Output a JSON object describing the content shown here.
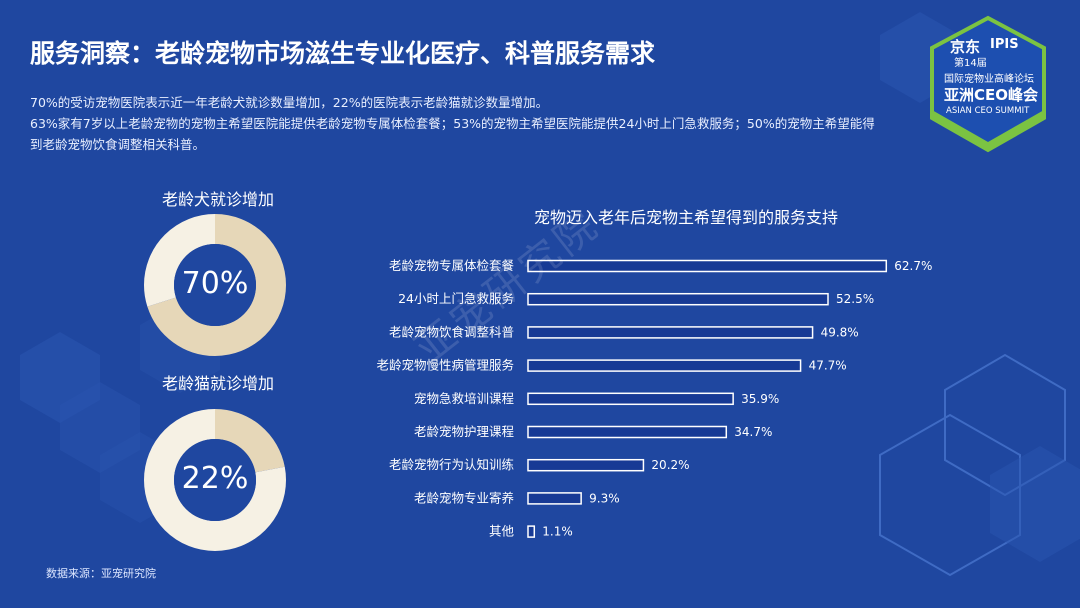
{
  "header": {
    "title": "服务洞察：老龄宠物市场滋生专业化医疗、科普服务需求"
  },
  "intro": {
    "line1": "70%的受访宠物医院表示近一年老龄犬就诊数量增加，22%的医院表示老龄猫就诊数量增加。",
    "line2": "63%家有7岁以上老龄宠物的宠物主希望医院能提供老龄宠物专属体检套餐；53%的宠物主希望医院能提供24小时上门急救服务；50%的宠物主希望能得",
    "line3": "到老龄宠物饮食调整相关科普。"
  },
  "badge": {
    "brand": "京东",
    "ipis": "IPIS",
    "edition": "第14届",
    "forum": "国际宠物业高峰论坛",
    "summit": "亚洲CEO峰会",
    "summit_en": "ASIAN CEO SUMMIT"
  },
  "watermark": "亚宠研究院",
  "source": "数据来源：亚宠研究院",
  "colors": {
    "background": "#1f47a0",
    "donut_fill": "#e6d7b8",
    "donut_rest": "#f6f1e4",
    "bar_fill": "#173a95",
    "bar_border": "#ffffff",
    "badge_green": "#7bc342",
    "badge_blue": "#1d4fb0"
  },
  "chart_data": [
    {
      "type": "pie",
      "title": "老龄犬就诊增加",
      "center_label": "70%",
      "values": [
        70,
        30
      ]
    },
    {
      "type": "pie",
      "title": "老龄猫就诊增加",
      "center_label": "22%",
      "values": [
        22,
        78
      ]
    },
    {
      "type": "bar",
      "orientation": "horizontal",
      "title": "宠物迈入老年后宠物主希望得到的服务支持",
      "categories": [
        "老龄宠物专属体检套餐",
        "24小时上门急救服务",
        "老龄宠物饮食调整科普",
        "老龄宠物慢性病管理服务",
        "宠物急救培训课程",
        "老龄宠物护理课程",
        "老龄宠物行为认知训练",
        "老龄宠物专业寄养",
        "其他"
      ],
      "values": [
        62.7,
        52.5,
        49.8,
        47.7,
        35.9,
        34.7,
        20.2,
        9.3,
        1.1
      ],
      "value_labels": [
        "62.7%",
        "52.5%",
        "49.8%",
        "47.7%",
        "35.9%",
        "34.7%",
        "20.2%",
        "9.3%",
        "1.1%"
      ],
      "xlim": [
        0,
        70
      ],
      "grid": false,
      "legend": "none"
    }
  ]
}
